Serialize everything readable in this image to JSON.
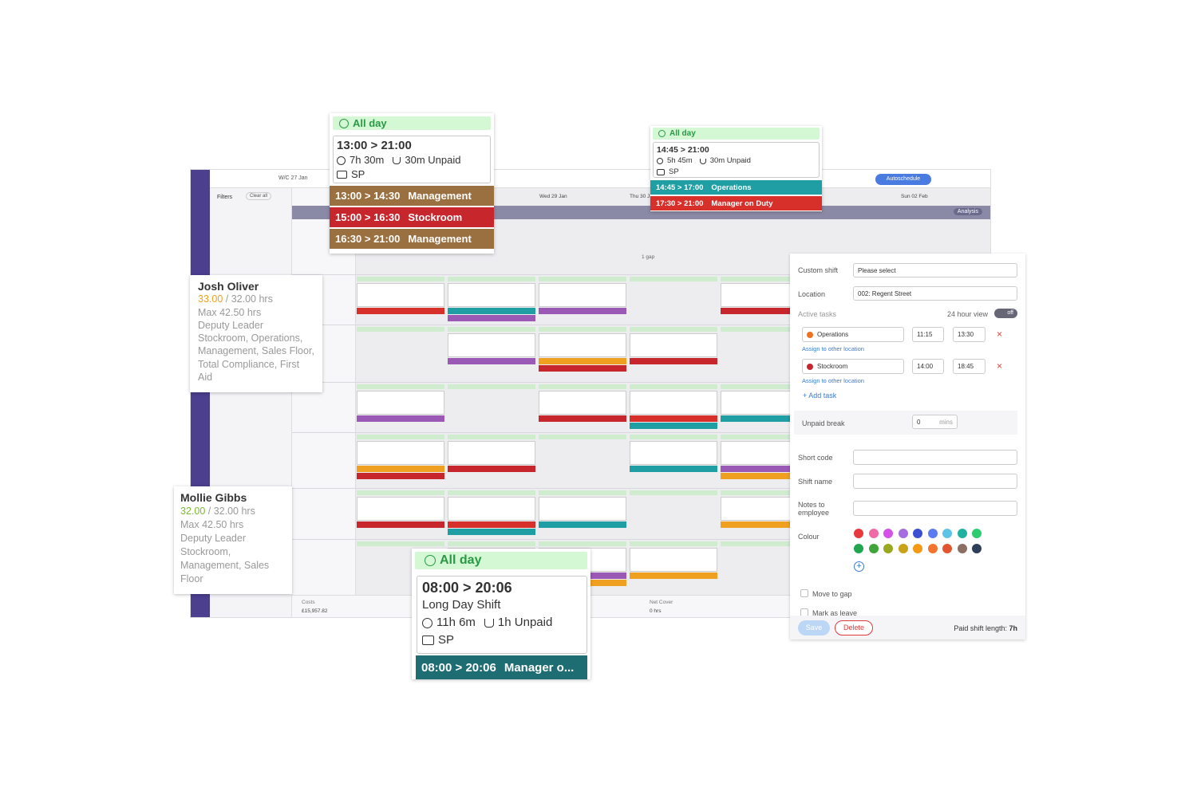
{
  "app": {
    "week": "W/C 27 Jan",
    "filters": "Filters",
    "clear_all": "Clear all",
    "days": [
      "Wed 29 Jan",
      "Thu 30 J",
      "Sun 02 Feb"
    ],
    "analysis": "Analysis",
    "autoschedule": "Autoschedule",
    "gap": "1 gap",
    "costs_label": "Costs",
    "costs_value": "£15,957.82",
    "net_cover_label": "Net Cover",
    "net_cover_value": "0 hrs"
  },
  "cards": [
    {
      "all_day": "All day",
      "time": "13:00 > 21:00",
      "duration": "7h 30m",
      "break": "30m Unpaid",
      "code": "SP",
      "tasks": [
        {
          "time": "13:00 > 14:30",
          "name": "Management",
          "color": "#9b7040"
        },
        {
          "time": "15:00 > 16:30",
          "name": "Stockroom",
          "color": "#c8262d"
        },
        {
          "time": "16:30 > 21:00",
          "name": "Management",
          "color": "#9b7040"
        }
      ]
    },
    {
      "all_day": "All day",
      "time": "14:45 > 21:00",
      "duration": "5h 45m",
      "break": "30m Unpaid",
      "code": "SP",
      "tasks": [
        {
          "time": "14:45 > 17:00",
          "name": "Operations",
          "color": "#1f9ea3"
        },
        {
          "time": "17:30 > 21:00",
          "name": "Manager on Duty",
          "color": "#d7302b"
        }
      ]
    },
    {
      "all_day": "All day",
      "time": "08:00 > 20:06",
      "name": "Long Day Shift",
      "duration": "11h 6m",
      "break": "1h Unpaid",
      "code": "SP",
      "tasks": [
        {
          "time": "08:00 > 20:06",
          "name": "Manager o...",
          "color": "#1d6d72"
        }
      ]
    }
  ],
  "employees": [
    {
      "name": "Josh Oliver",
      "hours": "33.00",
      "hours_color": "#f0a020",
      "target": "/ 32.00 hrs",
      "max": "Max 42.50 hrs",
      "role": "Deputy Leader",
      "skills": "Stockroom, Operations, Management, Sales Floor, Total Compliance, First Aid"
    },
    {
      "name": "Mollie Gibbs",
      "hours": "32.00",
      "hours_color": "#7cb92e",
      "target": "/ 32.00 hrs",
      "max": "Max 42.50 hrs",
      "role": "Deputy Leader",
      "skills": "Stockroom, Management, Sales Floor"
    }
  ],
  "form": {
    "custom_shift": "Custom shift",
    "custom_shift_value": "Please select",
    "location": "Location",
    "location_value": "002: Regent Street",
    "active_tasks": "Active tasks",
    "hour_view": "24 hour view",
    "toggle": "off",
    "tasks": [
      {
        "name": "Operations",
        "color": "#f07020",
        "start": "11:15",
        "end": "13:30",
        "assign": "Assign to other location"
      },
      {
        "name": "Stockroom",
        "color": "#c8262d",
        "start": "14:00",
        "end": "18:45",
        "assign": "Assign to other location"
      }
    ],
    "add_task": "+ Add task",
    "unpaid_break": "Unpaid break",
    "unpaid_value": "0",
    "unpaid_unit": "mins",
    "short_code": "Short code",
    "shift_name": "Shift name",
    "notes": "Notes to employee",
    "colour": "Colour",
    "colours": [
      "#e8383d",
      "#f06aa8",
      "#d452e8",
      "#a46ee0",
      "#3b4fd0",
      "#5a7cf0",
      "#5ec4e6",
      "#22b0a0",
      "#2ecc71",
      "#1fa64f",
      "#3fa53a",
      "#98a820",
      "#c9a21a",
      "#f39a12",
      "#f2742e",
      "#e2552e",
      "#8d6e63",
      "#2f3f5a"
    ],
    "move_to_gap": "Move to gap",
    "mark_as_leave": "Mark as leave",
    "save": "Save",
    "delete": "Delete",
    "paid_length": "Paid shift length:",
    "paid_length_value": "7h"
  }
}
